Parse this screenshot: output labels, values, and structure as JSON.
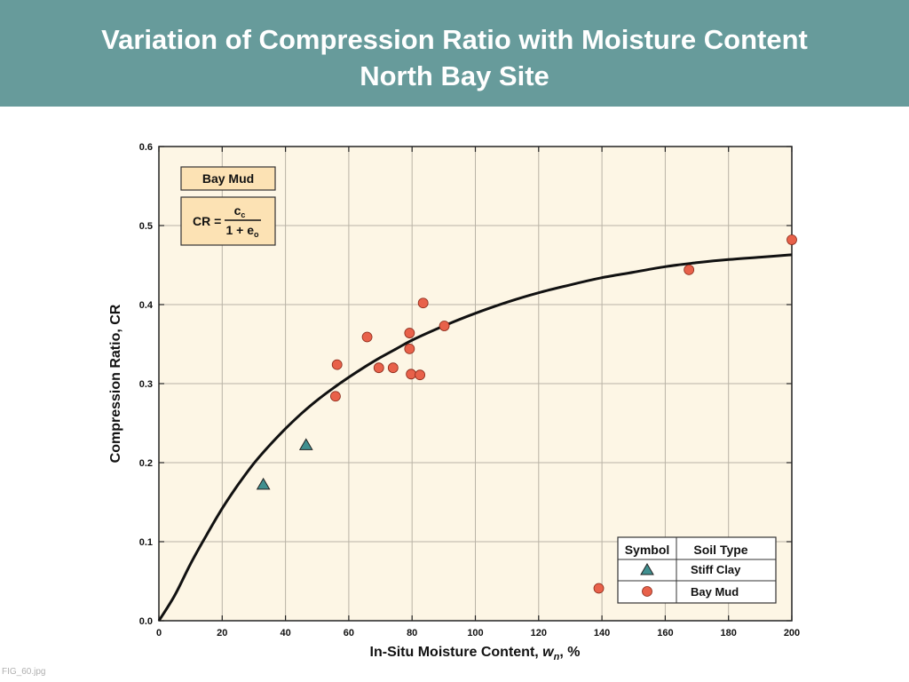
{
  "header": {
    "title_line1": "Variation of Compression Ratio with Moisture Content",
    "title_line2": "North Bay Site"
  },
  "footer": {
    "caption": "FIG_60.jpg"
  },
  "colors": {
    "header_bg": "#679b9b",
    "plot_bg": "#fdf6e5",
    "box_fill": "#fce2b4",
    "bay_mud_marker": "#e8614a",
    "stiff_clay_marker": "#3f8f8f"
  },
  "chart_data": {
    "type": "scatter",
    "xlabel_main": "In-Situ Moisture Content, ",
    "xlabel_sym": "w",
    "xlabel_sub": "n",
    "xlabel_end": ", %",
    "ylabel": "Compression Ratio, CR",
    "xlim": [
      0,
      200
    ],
    "ylim": [
      0,
      0.6
    ],
    "x_ticks": [
      "0",
      "20",
      "40",
      "60",
      "80",
      "100",
      "120",
      "140",
      "160",
      "180",
      "200"
    ],
    "y_ticks": [
      "0.0",
      "0.1",
      "0.2",
      "0.3",
      "0.4",
      "0.5",
      "0.6"
    ],
    "grid": true,
    "series": [
      {
        "name": "Stiff Clay",
        "marker": "triangle",
        "points": [
          [
            33,
            0.172
          ],
          [
            46.5,
            0.222
          ]
        ]
      },
      {
        "name": "Bay Mud",
        "marker": "circle",
        "points": [
          [
            55.8,
            0.284
          ],
          [
            56.3,
            0.324
          ],
          [
            65.8,
            0.359
          ],
          [
            69.5,
            0.32
          ],
          [
            74,
            0.32
          ],
          [
            79.2,
            0.344
          ],
          [
            79.2,
            0.364
          ],
          [
            79.7,
            0.312
          ],
          [
            82.5,
            0.311
          ],
          [
            83.5,
            0.402
          ],
          [
            90.2,
            0.373
          ],
          [
            139,
            0.041
          ],
          [
            167.5,
            0.444
          ],
          [
            200,
            0.482
          ]
        ]
      }
    ],
    "trend_curve": [
      [
        0,
        0
      ],
      [
        5,
        0.032
      ],
      [
        10,
        0.072
      ],
      [
        15,
        0.108
      ],
      [
        20,
        0.142
      ],
      [
        25,
        0.172
      ],
      [
        30,
        0.199
      ],
      [
        35,
        0.222
      ],
      [
        40,
        0.243
      ],
      [
        45,
        0.262
      ],
      [
        50,
        0.279
      ],
      [
        55,
        0.294
      ],
      [
        60,
        0.308
      ],
      [
        65,
        0.321
      ],
      [
        70,
        0.333
      ],
      [
        75,
        0.344
      ],
      [
        80,
        0.355
      ],
      [
        90,
        0.373
      ],
      [
        100,
        0.389
      ],
      [
        110,
        0.403
      ],
      [
        120,
        0.415
      ],
      [
        130,
        0.425
      ],
      [
        140,
        0.434
      ],
      [
        150,
        0.441
      ],
      [
        160,
        0.448
      ],
      [
        170,
        0.453
      ],
      [
        180,
        0.457
      ],
      [
        190,
        0.46
      ],
      [
        200,
        0.463
      ]
    ],
    "soil_box_label": "Bay Mud",
    "formula": {
      "lhs": "CR =",
      "num_main": "c",
      "num_sub": "c",
      "den_main": "1 + e",
      "den_sub": "o"
    },
    "legend": {
      "header_symbol": "Symbol",
      "header_type": "Soil Type",
      "placement": "bottom-right"
    }
  }
}
